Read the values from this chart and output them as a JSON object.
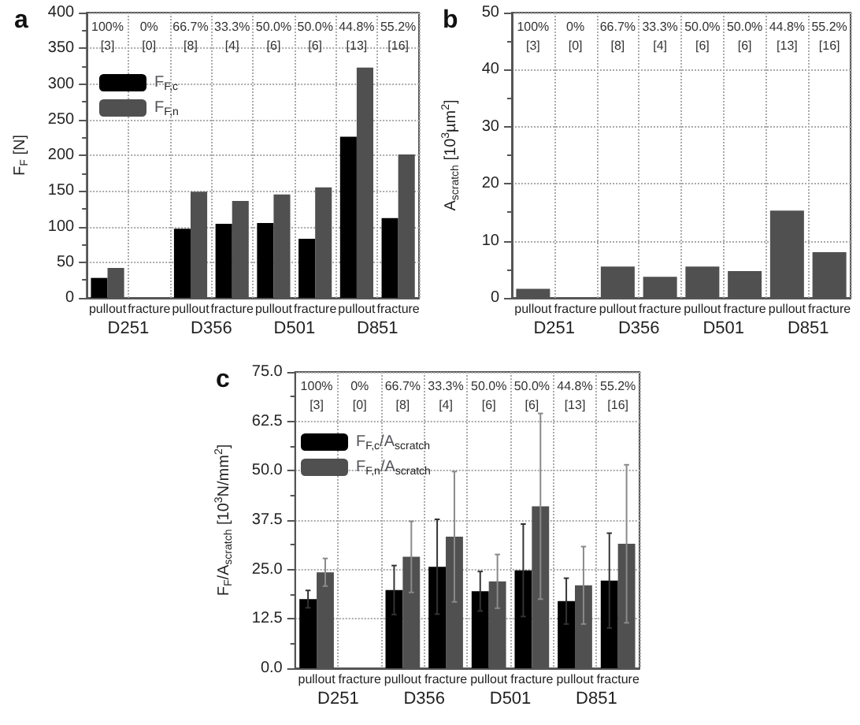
{
  "chart_data": [
    {
      "type": "bar",
      "title": "a",
      "ylabel": "F$_{F}$ [N]",
      "categories": [
        "pullout",
        "fracture",
        "pullout",
        "fracture",
        "pullout",
        "fracture",
        "pullout",
        "fracture"
      ],
      "series": [
        {
          "name": "F$_{F,c}$",
          "color": "#000000",
          "values": [
            28,
            null,
            97,
            104,
            105,
            83,
            226,
            112
          ]
        },
        {
          "name": "F$_{F,n}$",
          "color": "#505050",
          "values": [
            42,
            null,
            149,
            136,
            145,
            155,
            323,
            201
          ]
        }
      ],
      "ylim": [
        0,
        400
      ],
      "yticks": [
        0,
        50,
        100,
        150,
        200,
        250,
        300,
        350,
        400
      ],
      "grid": true,
      "legend": "top left",
      "annotations": [
        "100%\n[3]",
        "0%\n[0]",
        "66.7%\n[8]",
        "33.3%\n[4]",
        "50.0%\n[6]",
        "50.0%\n[6]",
        "44.8%\n[13]",
        "55.2%\n[16]",
        "D251",
        "D356",
        "D501",
        "D851"
      ]
    },
    {
      "type": "bar",
      "title": "b",
      "ylabel": "A$_{scratch}$ [10$^{3}$µm$^{2}$]",
      "categories": [
        "pullout",
        "fracture",
        "pullout",
        "fracture",
        "pullout",
        "fracture",
        "pullout",
        "fracture"
      ],
      "series": [
        {
          "color": "#505050",
          "values": [
            1.6,
            null,
            5.5,
            3.7,
            5.5,
            4.7,
            15.3,
            8.0
          ]
        }
      ],
      "ylim": [
        0,
        50
      ],
      "yticks": [
        0,
        10,
        20,
        30,
        40,
        50
      ],
      "grid": true,
      "annotations": [
        "100%\n[3]",
        "0%\n[0]",
        "66.7%\n[8]",
        "33.3%\n[4]",
        "50.0%\n[6]",
        "50.0%\n[6]",
        "44.8%\n[13]",
        "55.2%\n[16]",
        "D251",
        "D356",
        "D501",
        "D851"
      ]
    },
    {
      "type": "bar",
      "title": "c",
      "ylabel": "F$_{F}$/A$_{scratch}$ [10$^{3}$N/mm$^{2}$]",
      "categories": [
        "pullout",
        "fracture",
        "pullout",
        "fracture",
        "pullout",
        "fracture",
        "pullout",
        "fracture"
      ],
      "series": [
        {
          "name": "F$_{F,c}$/A$_{scratch}$",
          "color": "#000000",
          "values": [
            17.5,
            null,
            19.8,
            25.7,
            19.5,
            24.8,
            17.0,
            22.2
          ],
          "errors": [
            2.2,
            null,
            6.2,
            12.0,
            5.0,
            11.7,
            5.8,
            12.0
          ]
        },
        {
          "name": "F$_{F,n}$/A$_{scratch}$",
          "color": "#505050",
          "values": [
            24.3,
            null,
            28.2,
            33.3,
            22.0,
            41.0,
            21.0,
            31.5
          ],
          "errors": [
            3.5,
            null,
            9.0,
            16.5,
            6.8,
            23.5,
            9.8,
            20.0
          ]
        }
      ],
      "ylim": [
        0,
        75
      ],
      "yticks": [
        {
          "value": 0,
          "label": "0.0"
        },
        {
          "value": 12.5,
          "label": "12.5"
        },
        {
          "value": 25,
          "label": "25.0"
        },
        {
          "value": 37.5,
          "label": "37.5"
        },
        {
          "value": 50,
          "label": "50.0"
        },
        {
          "value": 62.5,
          "label": "62.5"
        },
        {
          "value": 75,
          "label": "75.0"
        }
      ],
      "grid": true,
      "legend": "top left",
      "annotations": [
        "100%\n[3]",
        "0%\n[0]",
        "66.7%\n[8]",
        "33.3%\n[4]",
        "50.0%\n[6]",
        "50.0%\n[6]",
        "44.8%\n[13]",
        "55.2%\n[16]",
        "D251",
        "D356",
        "D501",
        "D851"
      ]
    }
  ]
}
